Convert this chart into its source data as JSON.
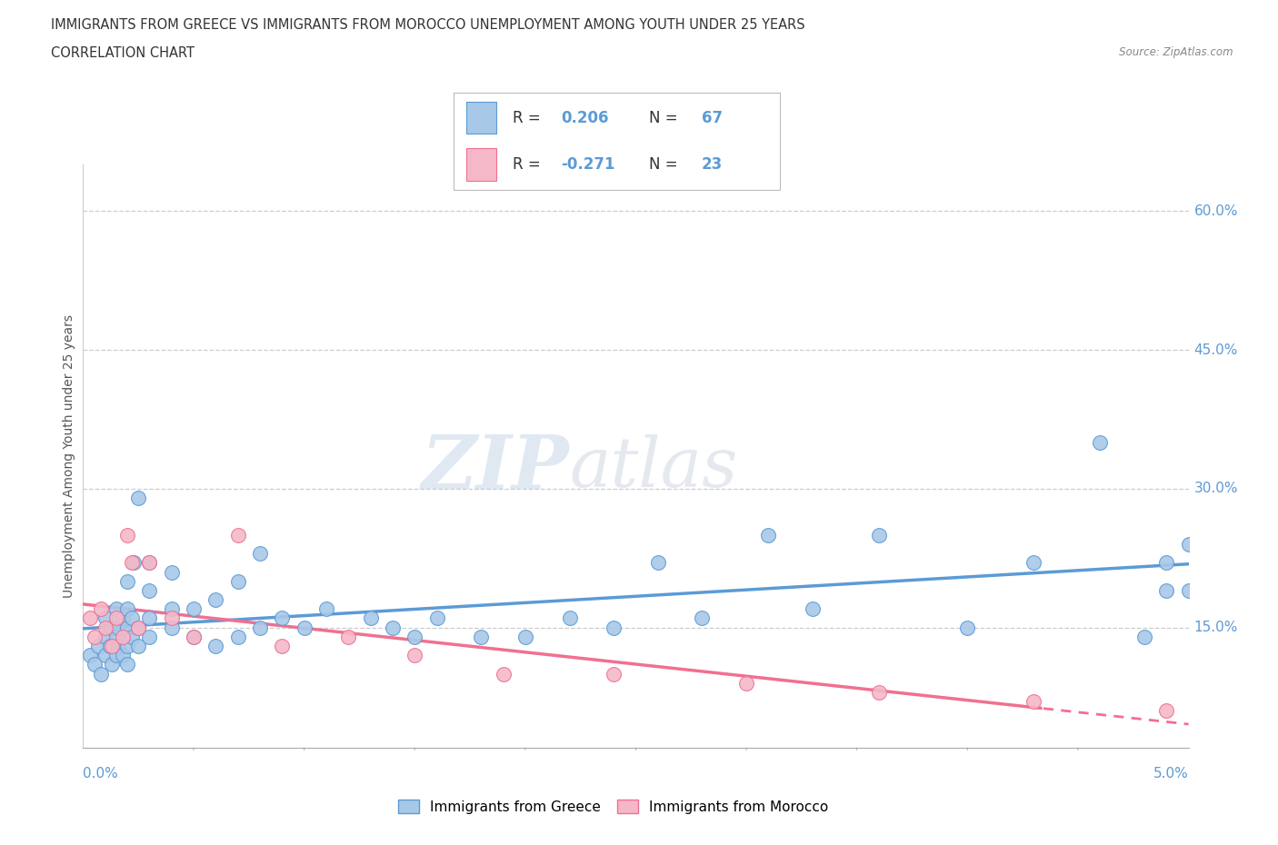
{
  "title_line1": "IMMIGRANTS FROM GREECE VS IMMIGRANTS FROM MOROCCO UNEMPLOYMENT AMONG YOUTH UNDER 25 YEARS",
  "title_line2": "CORRELATION CHART",
  "source": "Source: ZipAtlas.com",
  "ylabel": "Unemployment Among Youth under 25 years",
  "ytick_labels": [
    "15.0%",
    "30.0%",
    "45.0%",
    "60.0%"
  ],
  "ytick_vals": [
    0.15,
    0.3,
    0.45,
    0.6
  ],
  "xlim": [
    0.0,
    0.05
  ],
  "ylim": [
    0.02,
    0.65
  ],
  "r_greece": 0.206,
  "n_greece": 67,
  "r_morocco": -0.271,
  "n_morocco": 23,
  "color_greece": "#a8c8e8",
  "color_morocco": "#f4b8c8",
  "line_color_greece": "#5b9bd5",
  "line_color_morocco": "#f07090",
  "greece_x": [
    0.0003,
    0.0005,
    0.0007,
    0.0008,
    0.001,
    0.001,
    0.001,
    0.0012,
    0.0013,
    0.0013,
    0.0015,
    0.0015,
    0.0015,
    0.0016,
    0.0016,
    0.0018,
    0.0018,
    0.002,
    0.002,
    0.002,
    0.002,
    0.002,
    0.0022,
    0.0022,
    0.0023,
    0.0025,
    0.0025,
    0.0025,
    0.003,
    0.003,
    0.003,
    0.003,
    0.004,
    0.004,
    0.004,
    0.005,
    0.005,
    0.006,
    0.006,
    0.007,
    0.007,
    0.008,
    0.008,
    0.009,
    0.01,
    0.011,
    0.013,
    0.014,
    0.015,
    0.016,
    0.018,
    0.02,
    0.022,
    0.024,
    0.026,
    0.028,
    0.031,
    0.033,
    0.036,
    0.04,
    0.043,
    0.046,
    0.048,
    0.049,
    0.049,
    0.05,
    0.05
  ],
  "greece_y": [
    0.12,
    0.11,
    0.13,
    0.1,
    0.12,
    0.14,
    0.16,
    0.13,
    0.11,
    0.15,
    0.12,
    0.14,
    0.17,
    0.13,
    0.15,
    0.12,
    0.16,
    0.11,
    0.13,
    0.15,
    0.17,
    0.2,
    0.14,
    0.16,
    0.22,
    0.13,
    0.15,
    0.29,
    0.14,
    0.16,
    0.19,
    0.22,
    0.15,
    0.17,
    0.21,
    0.14,
    0.17,
    0.13,
    0.18,
    0.14,
    0.2,
    0.15,
    0.23,
    0.16,
    0.15,
    0.17,
    0.16,
    0.15,
    0.14,
    0.16,
    0.14,
    0.14,
    0.16,
    0.15,
    0.22,
    0.16,
    0.25,
    0.17,
    0.25,
    0.15,
    0.22,
    0.35,
    0.14,
    0.19,
    0.22,
    0.19,
    0.24
  ],
  "morocco_x": [
    0.0003,
    0.0005,
    0.0008,
    0.001,
    0.0013,
    0.0015,
    0.0018,
    0.002,
    0.0022,
    0.0025,
    0.003,
    0.004,
    0.005,
    0.007,
    0.009,
    0.012,
    0.015,
    0.019,
    0.024,
    0.03,
    0.036,
    0.043,
    0.049
  ],
  "morocco_y": [
    0.16,
    0.14,
    0.17,
    0.15,
    0.13,
    0.16,
    0.14,
    0.25,
    0.22,
    0.15,
    0.22,
    0.16,
    0.14,
    0.25,
    0.13,
    0.14,
    0.12,
    0.1,
    0.1,
    0.09,
    0.08,
    0.07,
    0.06
  ]
}
